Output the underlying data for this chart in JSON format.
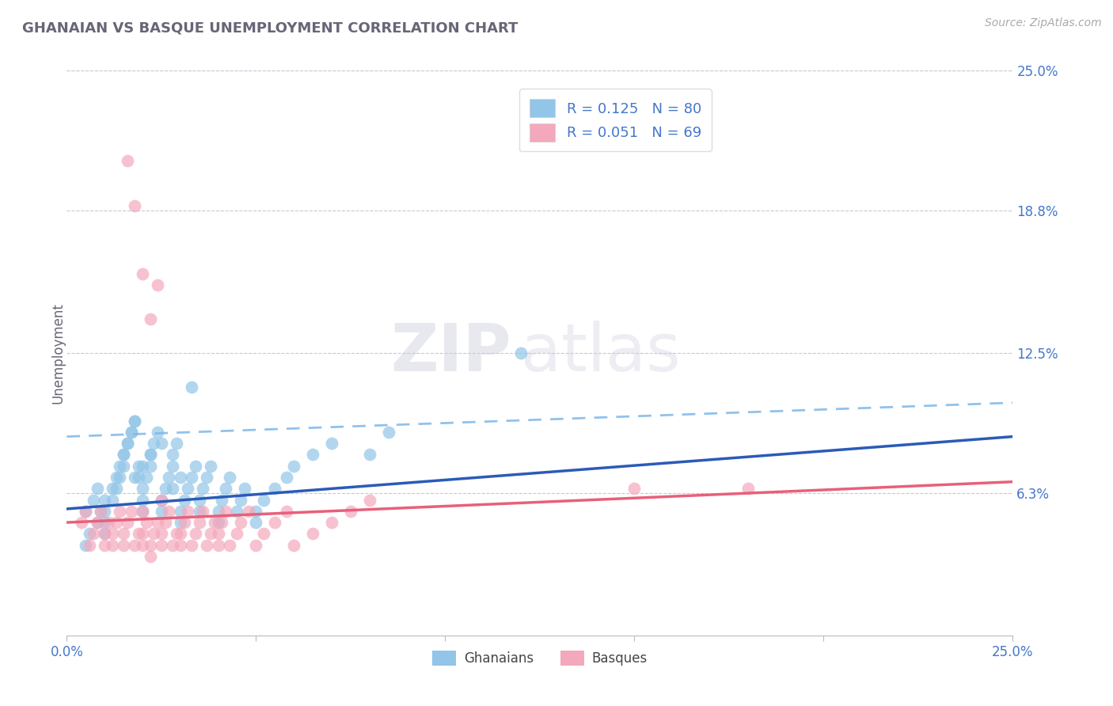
{
  "title": "GHANAIAN VS BASQUE UNEMPLOYMENT CORRELATION CHART",
  "source_text": "Source: ZipAtlas.com",
  "ylabel": "Unemployment",
  "xmin": 0.0,
  "xmax": 0.25,
  "ymin": 0.0,
  "ymax": 0.25,
  "yticks": [
    0.0,
    0.063,
    0.125,
    0.188,
    0.25
  ],
  "ytick_labels": [
    "",
    "6.3%",
    "12.5%",
    "18.8%",
    "25.0%"
  ],
  "xtick_labels": [
    "0.0%",
    "25.0%"
  ],
  "xticks": [
    0.0,
    0.25
  ],
  "ghanaian_color": "#92C5E8",
  "basque_color": "#F4A8BC",
  "trend_blue_color": "#2B5BB8",
  "trend_pink_color": "#E8607A",
  "trend_dashed_color": "#7EB8E8",
  "grid_color": "#C8C8D8",
  "background_color": "#FFFFFF",
  "legend_r1": "R = 0.125",
  "legend_n1": "N = 80",
  "legend_r2": "R = 0.051",
  "legend_n2": "N = 69",
  "legend_label1": "Ghanaians",
  "legend_label2": "Basques",
  "watermark_zip": "ZIP",
  "watermark_atlas": "atlas",
  "title_color": "#666677",
  "axis_label_color": "#4477CC",
  "source_color": "#AAAAAA",
  "ghanaian_x": [
    0.005,
    0.007,
    0.008,
    0.01,
    0.01,
    0.01,
    0.012,
    0.013,
    0.014,
    0.015,
    0.015,
    0.016,
    0.017,
    0.018,
    0.018,
    0.019,
    0.02,
    0.02,
    0.02,
    0.021,
    0.022,
    0.022,
    0.023,
    0.024,
    0.025,
    0.025,
    0.026,
    0.027,
    0.028,
    0.028,
    0.029,
    0.03,
    0.03,
    0.031,
    0.032,
    0.033,
    0.034,
    0.035,
    0.035,
    0.036,
    0.037,
    0.038,
    0.04,
    0.04,
    0.041,
    0.042,
    0.043,
    0.045,
    0.046,
    0.047,
    0.05,
    0.05,
    0.052,
    0.055,
    0.058,
    0.06,
    0.065,
    0.07,
    0.08,
    0.085,
    0.005,
    0.006,
    0.008,
    0.009,
    0.01,
    0.012,
    0.013,
    0.014,
    0.015,
    0.016,
    0.017,
    0.018,
    0.019,
    0.02,
    0.022,
    0.025,
    0.028,
    0.03,
    0.033,
    0.12
  ],
  "ghanaian_y": [
    0.055,
    0.06,
    0.065,
    0.045,
    0.05,
    0.055,
    0.06,
    0.065,
    0.07,
    0.075,
    0.08,
    0.085,
    0.09,
    0.095,
    0.07,
    0.075,
    0.055,
    0.06,
    0.065,
    0.07,
    0.075,
    0.08,
    0.085,
    0.09,
    0.055,
    0.06,
    0.065,
    0.07,
    0.075,
    0.08,
    0.085,
    0.05,
    0.055,
    0.06,
    0.065,
    0.07,
    0.075,
    0.055,
    0.06,
    0.065,
    0.07,
    0.075,
    0.05,
    0.055,
    0.06,
    0.065,
    0.07,
    0.055,
    0.06,
    0.065,
    0.05,
    0.055,
    0.06,
    0.065,
    0.07,
    0.075,
    0.08,
    0.085,
    0.08,
    0.09,
    0.04,
    0.045,
    0.05,
    0.055,
    0.06,
    0.065,
    0.07,
    0.075,
    0.08,
    0.085,
    0.09,
    0.095,
    0.07,
    0.075,
    0.08,
    0.085,
    0.065,
    0.07,
    0.11,
    0.125
  ],
  "basque_x": [
    0.004,
    0.005,
    0.006,
    0.007,
    0.008,
    0.009,
    0.01,
    0.01,
    0.011,
    0.012,
    0.012,
    0.013,
    0.014,
    0.015,
    0.015,
    0.016,
    0.017,
    0.018,
    0.019,
    0.02,
    0.02,
    0.021,
    0.022,
    0.022,
    0.023,
    0.024,
    0.025,
    0.025,
    0.026,
    0.027,
    0.028,
    0.029,
    0.03,
    0.03,
    0.031,
    0.032,
    0.033,
    0.034,
    0.035,
    0.036,
    0.037,
    0.038,
    0.039,
    0.04,
    0.04,
    0.041,
    0.042,
    0.043,
    0.045,
    0.046,
    0.048,
    0.05,
    0.052,
    0.055,
    0.058,
    0.06,
    0.065,
    0.07,
    0.075,
    0.08,
    0.016,
    0.018,
    0.02,
    0.022,
    0.024,
    0.15,
    0.18,
    0.02,
    0.025
  ],
  "basque_y": [
    0.05,
    0.055,
    0.04,
    0.045,
    0.05,
    0.055,
    0.04,
    0.045,
    0.05,
    0.04,
    0.045,
    0.05,
    0.055,
    0.04,
    0.045,
    0.05,
    0.055,
    0.04,
    0.045,
    0.04,
    0.045,
    0.05,
    0.035,
    0.04,
    0.045,
    0.05,
    0.04,
    0.045,
    0.05,
    0.055,
    0.04,
    0.045,
    0.04,
    0.045,
    0.05,
    0.055,
    0.04,
    0.045,
    0.05,
    0.055,
    0.04,
    0.045,
    0.05,
    0.04,
    0.045,
    0.05,
    0.055,
    0.04,
    0.045,
    0.05,
    0.055,
    0.04,
    0.045,
    0.05,
    0.055,
    0.04,
    0.045,
    0.05,
    0.055,
    0.06,
    0.21,
    0.19,
    0.16,
    0.14,
    0.155,
    0.065,
    0.065,
    0.055,
    0.06
  ],
  "trend_blue_x0": 0.0,
  "trend_blue_y0": 0.056,
  "trend_blue_x1": 0.25,
  "trend_blue_y1": 0.088,
  "trend_pink_x0": 0.0,
  "trend_pink_y0": 0.05,
  "trend_pink_x1": 0.25,
  "trend_pink_y1": 0.068,
  "trend_dashed_x0": 0.0,
  "trend_dashed_y0": 0.088,
  "trend_dashed_x1": 0.25,
  "trend_dashed_y1": 0.103
}
